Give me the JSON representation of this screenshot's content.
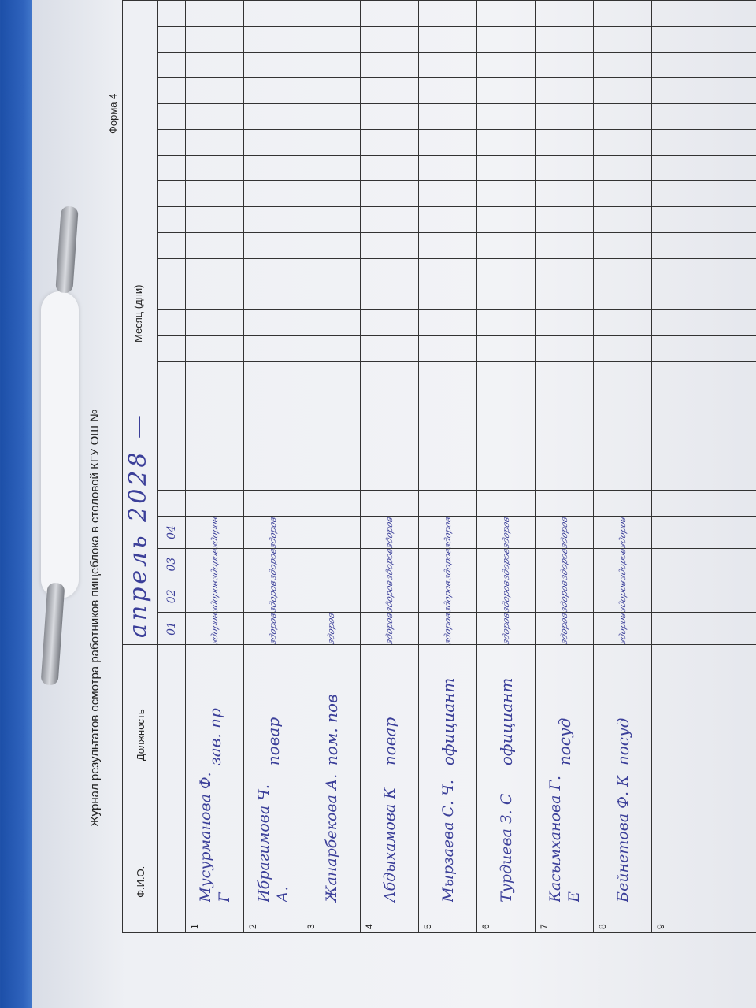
{
  "header": {
    "title": "Журнал результатов осмотра работников пищеблока  в столовой КГУ ОШ №",
    "form": "Форма 4",
    "col_fio": "Ф.И.О.",
    "col_position": "Должность",
    "col_month": "Месяц (дни)",
    "month_handwritten": "апрель 2028 —",
    "days": [
      "01",
      "02",
      "03",
      "04"
    ]
  },
  "rows": [
    {
      "n": "1",
      "fio": "Мусурманова Ф. Г",
      "position": "зав. пр",
      "marks": [
        "здоров",
        "здоров",
        "здоров",
        "здоров"
      ]
    },
    {
      "n": "2",
      "fio": "Ибрагимова Ч. А.",
      "position": "повар",
      "marks": [
        "здоров",
        "здоров",
        "здоров",
        "здоров"
      ]
    },
    {
      "n": "3",
      "fio": "Жанарбекова А.",
      "position": "пом. пов",
      "marks": [
        "здоров",
        "",
        "",
        ""
      ]
    },
    {
      "n": "4",
      "fio": "Абдыхамова К",
      "position": "повар",
      "marks": [
        "здоров",
        "здоров",
        "здоров",
        "здоров"
      ]
    },
    {
      "n": "5",
      "fio": "Мырзаева С. Ч.",
      "position": "официант",
      "marks": [
        "здоров",
        "здоров",
        "здоров",
        "здоров"
      ]
    },
    {
      "n": "6",
      "fio": "Турдиева З. С",
      "position": "официант",
      "marks": [
        "здоров",
        "здоров",
        "здоров",
        "здоров"
      ]
    },
    {
      "n": "7",
      "fio": "Касымханова Г. Е",
      "position": "посуд",
      "marks": [
        "здоров",
        "здоров",
        "здоров",
        "здоров"
      ]
    },
    {
      "n": "8",
      "fio": "Бейнетова Ф. К",
      "position": "посуд",
      "marks": [
        "здоров",
        "здоров",
        "здоров",
        "здоров"
      ]
    },
    {
      "n": "9",
      "fio": "",
      "position": "",
      "marks": [
        "",
        "",
        "",
        ""
      ]
    },
    {
      "n": "",
      "fio": "",
      "position": "",
      "marks": [
        "",
        "",
        "",
        ""
      ]
    }
  ],
  "colors": {
    "ink": "#3b3f99",
    "folder": "#2f63bd"
  }
}
